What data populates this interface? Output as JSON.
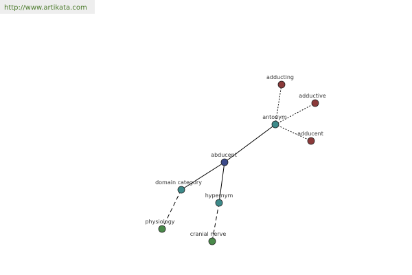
{
  "watermark": "http://www.artikata.com",
  "nodes": [
    {
      "label": "abducent"
    },
    {
      "label": "antonym"
    },
    {
      "label": "adducting"
    },
    {
      "label": "adductive"
    },
    {
      "label": "adducent"
    },
    {
      "label": "domain category"
    },
    {
      "label": "hypernym"
    },
    {
      "label": "physiology"
    },
    {
      "label": "cranial nerve"
    }
  ]
}
